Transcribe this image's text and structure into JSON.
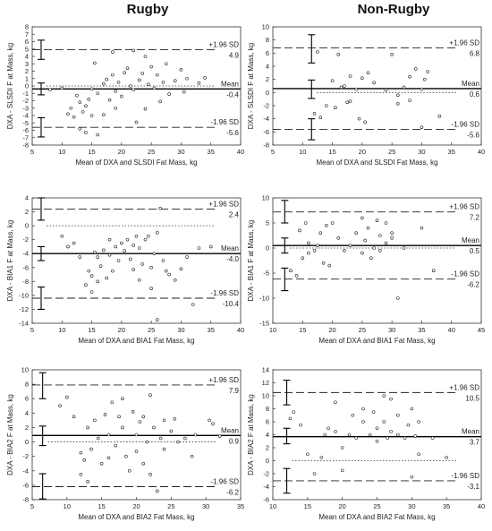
{
  "columns": {
    "left": "Rugby",
    "right": "Non-Rugby"
  },
  "chart_data": [
    {
      "type": "scatter",
      "xlabel": "Mean of DXA and SLSDI Fat Mass, kg",
      "ylabel": "DXA - SLSDI F at Mass, kg",
      "xlim": [
        5,
        40
      ],
      "ylim": [
        -8,
        8
      ],
      "xticks": [
        5,
        10,
        15,
        20,
        25,
        30,
        35,
        40
      ],
      "yticks": [
        -8,
        -7,
        -6,
        -5,
        -4,
        -3,
        -2,
        -1,
        0,
        1,
        2,
        3,
        4,
        5,
        6,
        7,
        8
      ],
      "mean": -0.4,
      "upper": 4.9,
      "lower": -5.6,
      "labels": {
        "upper": "+1.96 SD",
        "upper_value": "4.9",
        "mean": "Mean",
        "mean_value": "-0.4",
        "lower": "-1.96 SD",
        "lower_value": "-5.6"
      },
      "ci_x": 6.5,
      "ci": {
        "upper": [
          3.6,
          6.2
        ],
        "mean": [
          -1.2,
          0.4
        ],
        "lower": [
          -6.9,
          -4.3
        ]
      },
      "points": [
        [
          8,
          -0.5
        ],
        [
          10,
          -0.3
        ],
        [
          11,
          -3.8
        ],
        [
          11.5,
          -3
        ],
        [
          12,
          -4.2
        ],
        [
          12.5,
          -1.3
        ],
        [
          13,
          -2.2
        ],
        [
          13,
          -5.8
        ],
        [
          13.5,
          -3.5
        ],
        [
          14,
          -6.3
        ],
        [
          14,
          -2.7
        ],
        [
          14.5,
          -1.8
        ],
        [
          15,
          -4
        ],
        [
          15,
          -0.4
        ],
        [
          15.5,
          3.1
        ],
        [
          16,
          -1
        ],
        [
          16,
          -6.6
        ],
        [
          17,
          0.3
        ],
        [
          17,
          -3.9
        ],
        [
          17.5,
          0.9
        ],
        [
          18,
          -1.9
        ],
        [
          18.5,
          1.5
        ],
        [
          18.5,
          4.6
        ],
        [
          19,
          -0.7
        ],
        [
          19,
          -3
        ],
        [
          19.5,
          0.5
        ],
        [
          20,
          -1.4
        ],
        [
          20.5,
          1.8
        ],
        [
          21,
          2.4
        ],
        [
          21.5,
          0
        ],
        [
          22,
          4.8
        ],
        [
          22,
          -0.5
        ],
        [
          22.5,
          -4.9
        ],
        [
          23,
          0.8
        ],
        [
          23.5,
          1.7
        ],
        [
          24,
          -3.1
        ],
        [
          24,
          4
        ],
        [
          24.5,
          0.2
        ],
        [
          25,
          2.6
        ],
        [
          25.5,
          -0.3
        ],
        [
          26,
          1.5
        ],
        [
          26.5,
          -2.1
        ],
        [
          27,
          0.5
        ],
        [
          27.5,
          3
        ],
        [
          28,
          -1.1
        ],
        [
          29,
          0.7
        ],
        [
          30,
          2.2
        ],
        [
          30.5,
          -0.8
        ],
        [
          31,
          1
        ],
        [
          33,
          0.4
        ],
        [
          34,
          1.1
        ]
      ]
    },
    {
      "type": "scatter",
      "xlabel": "Mean of DXA and BIA1 Fat Mass, kg",
      "ylabel": "DXA - BIA1 F at Mass, kg",
      "xlim": [
        5,
        40
      ],
      "ylim": [
        -14,
        4
      ],
      "xticks": [
        5,
        10,
        15,
        20,
        25,
        30,
        35,
        40
      ],
      "yticks": [
        -14,
        -12,
        -10,
        -8,
        -6,
        -4,
        -2,
        0,
        2,
        4
      ],
      "mean": -4.0,
      "upper": 2.4,
      "lower": -10.4,
      "labels": {
        "upper": "+1.96 SD",
        "upper_value": "2.4",
        "mean": "Mean",
        "mean_value": "-4.0",
        "lower": "-1.96 SD",
        "lower_value": "-10.4"
      },
      "ci_x": 6.5,
      "ci": {
        "upper": [
          0.8,
          4
        ],
        "mean": [
          -5,
          -3
        ],
        "lower": [
          -12,
          -8.8
        ]
      },
      "points": [
        [
          10,
          -1.5
        ],
        [
          11,
          -3
        ],
        [
          12,
          -2.5
        ],
        [
          13,
          -4.5
        ],
        [
          14,
          -8.5
        ],
        [
          14.5,
          -6.5
        ],
        [
          15,
          -9.5
        ],
        [
          15,
          -7.2
        ],
        [
          15.5,
          -3.8
        ],
        [
          16,
          -8
        ],
        [
          16,
          -4.5
        ],
        [
          16.5,
          -5.8
        ],
        [
          17,
          -3.5
        ],
        [
          17.5,
          -7.5
        ],
        [
          18,
          -4.2
        ],
        [
          18,
          -2
        ],
        [
          18.5,
          -6.5
        ],
        [
          19,
          -3
        ],
        [
          19.5,
          -5
        ],
        [
          20,
          -2.5
        ],
        [
          20.5,
          -3.6
        ],
        [
          21,
          -2
        ],
        [
          21.5,
          -4.8
        ],
        [
          22,
          -2.8
        ],
        [
          22,
          -6.3
        ],
        [
          22.5,
          -1.5
        ],
        [
          23,
          -3.2
        ],
        [
          23,
          -7.8
        ],
        [
          23.5,
          -5.5
        ],
        [
          24,
          -2
        ],
        [
          24.5,
          -1.5
        ],
        [
          25,
          -6
        ],
        [
          25,
          -9
        ],
        [
          25.5,
          -4
        ],
        [
          26,
          -1
        ],
        [
          26,
          -13.5
        ],
        [
          26.5,
          2.5
        ],
        [
          27,
          -5
        ],
        [
          27.5,
          -6.5
        ],
        [
          28,
          -7
        ],
        [
          29,
          -7.8
        ],
        [
          30,
          -6.2
        ],
        [
          31,
          -4.5
        ],
        [
          32,
          -11.3
        ],
        [
          33,
          -3.2
        ],
        [
          35,
          -3
        ]
      ]
    },
    {
      "type": "scatter",
      "xlabel": "Mean of DXA and BIA2 Fat Mass, kg",
      "ylabel": "DXA - BIA2 F at Mass, kg",
      "xlim": [
        5,
        35
      ],
      "ylim": [
        -8,
        10
      ],
      "xticks": [
        5,
        10,
        15,
        20,
        25,
        30,
        35
      ],
      "yticks": [
        -8,
        -6,
        -4,
        -2,
        0,
        2,
        4,
        6,
        8,
        10
      ],
      "mean": 0.9,
      "upper": 7.9,
      "lower": -6.2,
      "labels": {
        "upper": "+1.96 SD",
        "upper_value": "7.9",
        "mean": "Mean",
        "mean_value": "0.9",
        "lower": "-1.96 SD",
        "lower_value": "-6.2"
      },
      "ci_x": 6.5,
      "ci": {
        "upper": [
          6,
          9.6
        ],
        "mean": [
          -0.5,
          2.2
        ],
        "lower": [
          -7.9,
          -4.4
        ]
      },
      "points": [
        [
          9,
          5
        ],
        [
          10,
          6.2
        ],
        [
          11,
          3.5
        ],
        [
          12,
          -1.5
        ],
        [
          12,
          -4.5
        ],
        [
          12.5,
          -2.5
        ],
        [
          13,
          2
        ],
        [
          13,
          -5.5
        ],
        [
          13.5,
          -1
        ],
        [
          14,
          3
        ],
        [
          14.5,
          0.5
        ],
        [
          15,
          -3
        ],
        [
          15.5,
          3.8
        ],
        [
          16,
          1
        ],
        [
          16,
          -2.2
        ],
        [
          16.5,
          5.5
        ],
        [
          17,
          -0.5
        ],
        [
          17.5,
          3.5
        ],
        [
          18,
          2
        ],
        [
          18,
          6
        ],
        [
          18.5,
          -2
        ],
        [
          19,
          -4
        ],
        [
          19.5,
          4.2
        ],
        [
          20,
          1
        ],
        [
          20,
          -1.3
        ],
        [
          20.5,
          2.8
        ],
        [
          21,
          3.5
        ],
        [
          21,
          -3
        ],
        [
          21.5,
          0
        ],
        [
          22,
          -4.5
        ],
        [
          22,
          6.5
        ],
        [
          22.5,
          2
        ],
        [
          23,
          -6.8
        ],
        [
          23.5,
          0.5
        ],
        [
          24,
          3
        ],
        [
          24,
          -1
        ],
        [
          25,
          1.5
        ],
        [
          25.5,
          3.2
        ],
        [
          26,
          0
        ],
        [
          27,
          0.5
        ],
        [
          28,
          -2
        ],
        [
          28.5,
          1
        ],
        [
          30.5,
          3
        ],
        [
          31,
          2.5
        ],
        [
          32,
          0.8
        ]
      ]
    },
    {
      "type": "scatter",
      "xlabel": "Mean of DXA and SLSDI Fat Mass, kg",
      "ylabel": "DXA - SLSDI F at Mass, kg",
      "xlim": [
        5,
        40
      ],
      "ylim": [
        -8,
        10
      ],
      "xticks": [
        5,
        10,
        15,
        20,
        25,
        30,
        35,
        40
      ],
      "yticks": [
        -8,
        -6,
        -4,
        -2,
        0,
        2,
        4,
        6,
        8,
        10
      ],
      "mean": 0.6,
      "upper": 6.8,
      "lower": -5.6,
      "labels": {
        "upper": "+1.96 SD",
        "upper_value": "6.8",
        "mean": "Mean",
        "mean_value": "0.6",
        "lower": "-1.96 SD",
        "lower_value": "-5.6"
      },
      "ci_x": 11.5,
      "ci": {
        "upper": [
          4.5,
          8.8
        ],
        "mean": [
          -0.9,
          1.9
        ],
        "lower": [
          -7.2,
          -4
        ]
      },
      "points": [
        [
          12,
          -3.2
        ],
        [
          12.5,
          6.2
        ],
        [
          13,
          -3.8
        ],
        [
          14,
          -2
        ],
        [
          15,
          1.8
        ],
        [
          15.5,
          -2.3
        ],
        [
          16,
          5.8
        ],
        [
          16.5,
          0.8
        ],
        [
          17,
          1
        ],
        [
          17.5,
          -1.5
        ],
        [
          18,
          -1.3
        ],
        [
          18,
          2.5
        ],
        [
          19,
          0.5
        ],
        [
          19.5,
          -4
        ],
        [
          20,
          2.2
        ],
        [
          20.5,
          -4.5
        ],
        [
          21,
          3
        ],
        [
          22,
          1.5
        ],
        [
          24,
          0.4
        ],
        [
          25,
          5.8
        ],
        [
          26,
          -0.4
        ],
        [
          26,
          -1.7
        ],
        [
          27,
          0.8
        ],
        [
          28,
          -1.2
        ],
        [
          28,
          2.4
        ],
        [
          29,
          3.6
        ],
        [
          30,
          0.5
        ],
        [
          30,
          -5.3
        ],
        [
          30.5,
          2
        ],
        [
          31,
          3.2
        ],
        [
          33,
          -3.6
        ]
      ]
    },
    {
      "type": "scatter",
      "xlabel": "Mean of DXA and BIA1 Fat Mass, kg",
      "ylabel": "DXA - BIA1 F at Mass, kg",
      "xlim": [
        10,
        45
      ],
      "ylim": [
        -15,
        10
      ],
      "xticks": [
        10,
        15,
        20,
        25,
        30,
        35,
        40,
        45
      ],
      "yticks": [
        -15,
        -10,
        -5,
        0,
        5,
        10
      ],
      "mean": 0.5,
      "upper": 7.2,
      "lower": -6.2,
      "labels": {
        "upper": "+1.96 SD",
        "upper_value": "7.2",
        "mean": "Mean",
        "mean_value": "0.5",
        "lower": "-1.96 SD",
        "lower_value": "-6.2"
      },
      "ci_x": 12,
      "ci": {
        "upper": [
          5,
          9.5
        ],
        "mean": [
          -1,
          2
        ],
        "lower": [
          -8.5,
          -4
        ]
      },
      "points": [
        [
          13,
          -4.5
        ],
        [
          14,
          -5.5
        ],
        [
          14.5,
          3.5
        ],
        [
          15,
          -2
        ],
        [
          15.5,
          5
        ],
        [
          16,
          -1
        ],
        [
          16,
          1
        ],
        [
          17,
          -0.5
        ],
        [
          17.5,
          0.5
        ],
        [
          18,
          3
        ],
        [
          18.5,
          -3
        ],
        [
          19,
          4.5
        ],
        [
          19.5,
          -3.5
        ],
        [
          20,
          5
        ],
        [
          21,
          2
        ],
        [
          22,
          -0.5
        ],
        [
          23,
          0.5
        ],
        [
          24,
          3
        ],
        [
          25,
          6
        ],
        [
          25,
          -1
        ],
        [
          25.5,
          1.5
        ],
        [
          26,
          4
        ],
        [
          26.5,
          -2
        ],
        [
          27,
          0
        ],
        [
          27.5,
          5.5
        ],
        [
          28,
          2.5
        ],
        [
          28,
          -0.5
        ],
        [
          29,
          1
        ],
        [
          29,
          5
        ],
        [
          30,
          2
        ],
        [
          30,
          3
        ],
        [
          31,
          -10
        ],
        [
          32,
          0
        ],
        [
          35,
          4
        ],
        [
          37,
          -4.5
        ]
      ]
    },
    {
      "type": "scatter",
      "xlabel": "Mean of DXA and BIA2 Fat Mass, kg",
      "ylabel": "DXA - BIA2 F at Mass, kg",
      "xlim": [
        10,
        40
      ],
      "ylim": [
        -6,
        14
      ],
      "xticks": [
        10,
        15,
        20,
        25,
        30,
        35,
        40
      ],
      "yticks": [
        -6,
        -4,
        -2,
        0,
        2,
        4,
        6,
        8,
        10,
        12,
        14
      ],
      "mean": 3.7,
      "upper": 10.5,
      "lower": -3.1,
      "labels": {
        "upper": "+1.96 SD",
        "upper_value": "10.5",
        "mean": "Mean",
        "mean_value": "3.7",
        "lower": "-1.96 SD",
        "lower_value": "-3.1"
      },
      "ci_x": 12,
      "ci": {
        "upper": [
          8.6,
          12.4
        ],
        "mean": [
          2.6,
          5
        ],
        "lower": [
          -5,
          -1.2
        ]
      },
      "points": [
        [
          12.5,
          6.5
        ],
        [
          13,
          7.5
        ],
        [
          14,
          5.5
        ],
        [
          15,
          1
        ],
        [
          16,
          -2
        ],
        [
          17,
          0.5
        ],
        [
          17.5,
          4
        ],
        [
          18,
          5
        ],
        [
          19,
          4.5
        ],
        [
          19,
          9
        ],
        [
          20,
          2
        ],
        [
          20,
          -1.5
        ],
        [
          21,
          4
        ],
        [
          21.5,
          7
        ],
        [
          22,
          3.5
        ],
        [
          23,
          6
        ],
        [
          23,
          8
        ],
        [
          24,
          4
        ],
        [
          24.5,
          7.5
        ],
        [
          25,
          5
        ],
        [
          25,
          3
        ],
        [
          26,
          10
        ],
        [
          26,
          6
        ],
        [
          26.5,
          3.5
        ],
        [
          27,
          4.5
        ],
        [
          27,
          9.5
        ],
        [
          28,
          4
        ],
        [
          28,
          7
        ],
        [
          29,
          3.5
        ],
        [
          29.5,
          5.5
        ],
        [
          30,
          8
        ],
        [
          30,
          -2.5
        ],
        [
          30.5,
          3.8
        ],
        [
          31,
          1
        ],
        [
          31,
          6
        ],
        [
          33,
          3.5
        ],
        [
          35,
          0.5
        ]
      ]
    }
  ]
}
